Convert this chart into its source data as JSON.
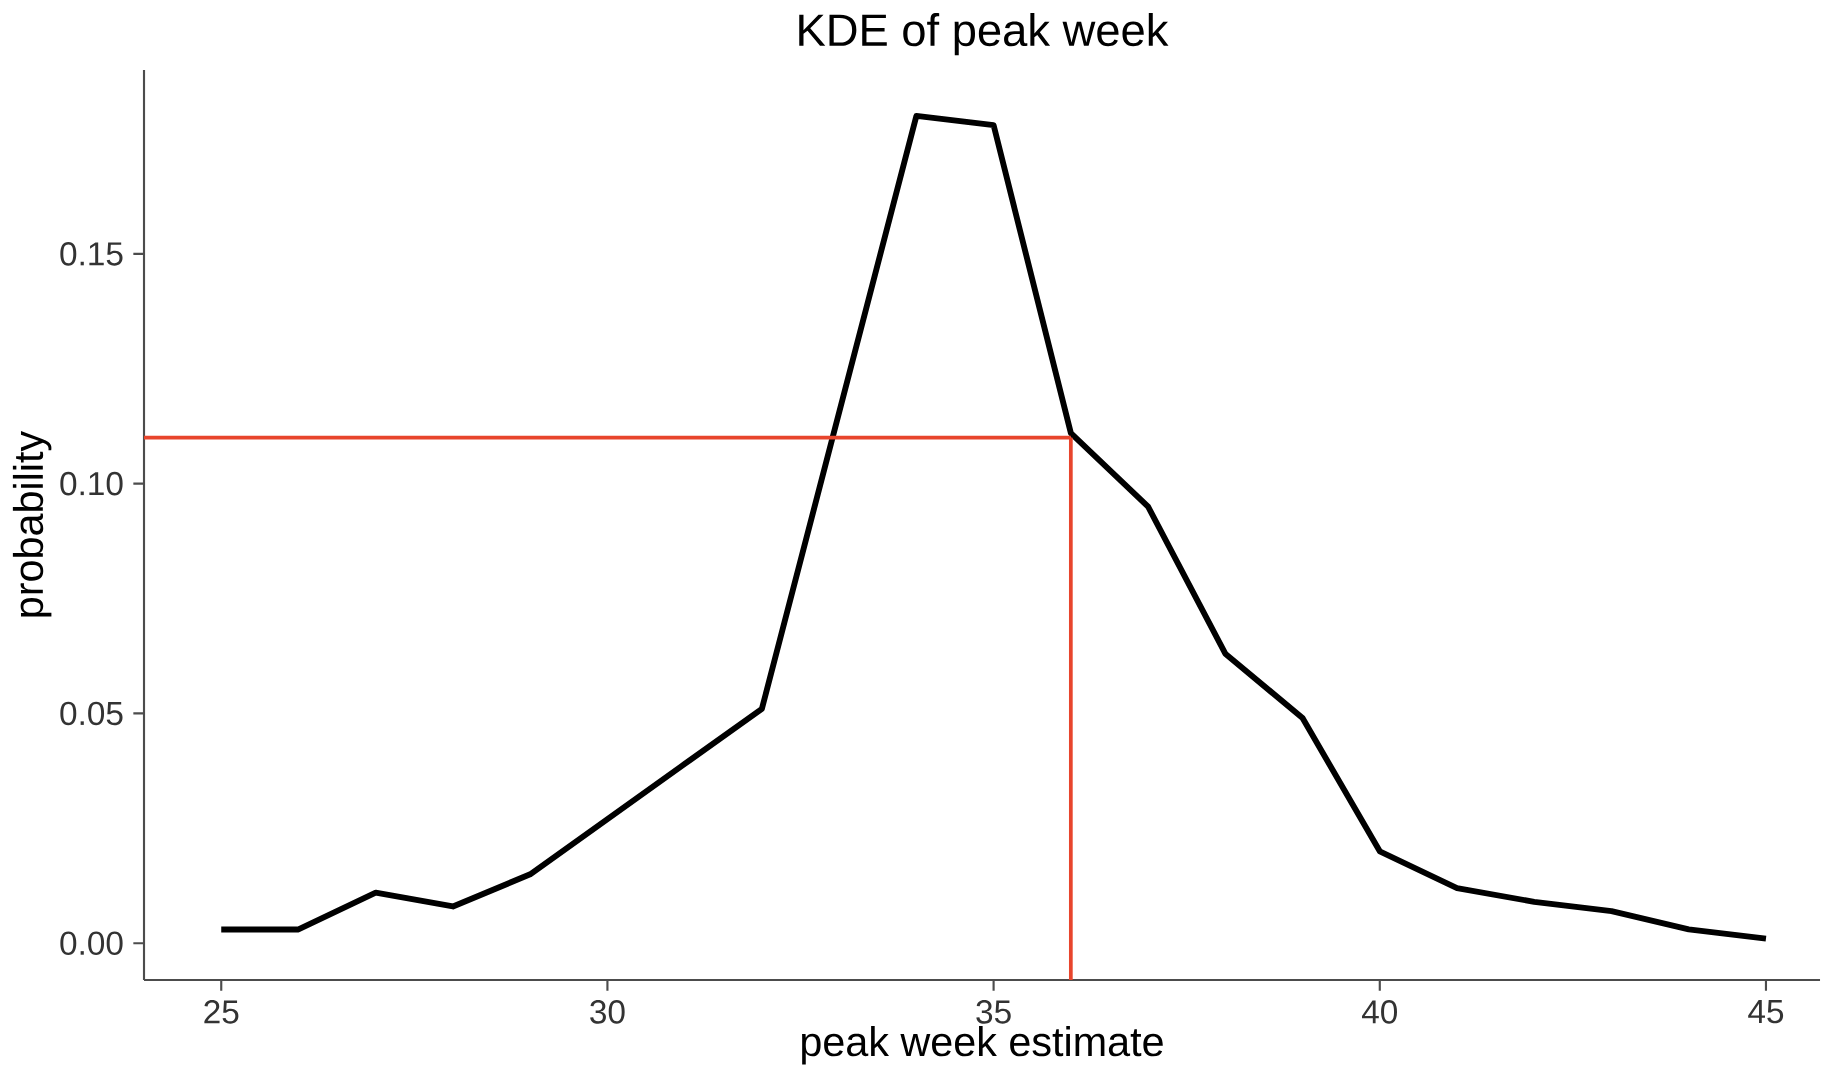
{
  "chart_data": {
    "type": "line",
    "title": "KDE of peak week",
    "xlabel": "peak week estimate",
    "ylabel": "probability",
    "series": [
      {
        "color": "#000000",
        "x": [
          25,
          26,
          27,
          28,
          29,
          30,
          31,
          32,
          34,
          35,
          36,
          37,
          38,
          39,
          40,
          41,
          42,
          43,
          44,
          45
        ],
        "values": [
          0.003,
          0.003,
          0.011,
          0.008,
          0.015,
          0.027,
          0.039,
          0.051,
          0.18,
          0.178,
          0.111,
          0.095,
          0.063,
          0.049,
          0.02,
          0.012,
          0.009,
          0.007,
          0.003,
          0.001
        ]
      }
    ],
    "xlim": [
      24,
      45.7
    ],
    "ylim": [
      -0.008,
      0.19
    ],
    "xticks": [
      25,
      30,
      35,
      40,
      45
    ],
    "yticks": [
      {
        "value": 0,
        "label": "0.00"
      },
      {
        "value": 0.05,
        "label": "0.05"
      },
      {
        "value": 0.1,
        "label": "0.10"
      },
      {
        "value": 0.15,
        "label": "0.15"
      }
    ],
    "ref_lines": [
      {
        "axis": "y",
        "value": 0.11,
        "color": "#e8452c"
      },
      {
        "axis": "x",
        "value": 36,
        "color": "#e8452c"
      }
    ],
    "marker": "none",
    "line_style": "solid"
  }
}
